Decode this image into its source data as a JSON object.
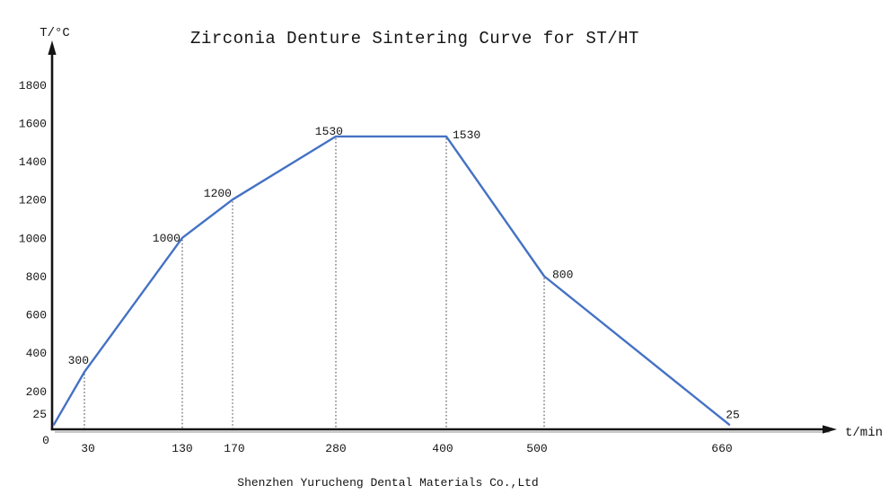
{
  "title": "Zirconia Denture Sintering Curve for ST/HT",
  "footer": "Shenzhen Yurucheng Dental Materials Co.,Ltd",
  "axes": {
    "y_axis_label": "T/°C",
    "x_axis_label": "t/min"
  },
  "colors": {
    "curve": "#4472C4",
    "axis": "#141414",
    "dropline": "#3c3c3c"
  },
  "chart_data": {
    "type": "line",
    "title": "Zirconia Denture Sintering Curve for ST/HT",
    "xlabel": "t/min",
    "ylabel": "T/°C",
    "xlim": [
      0,
      660
    ],
    "ylim": [
      0,
      1900
    ],
    "grid": "vertical droplines at labeled points only",
    "legend": "none",
    "x_ticks": [
      0,
      30,
      130,
      170,
      280,
      400,
      500,
      660
    ],
    "y_ticks": [
      25,
      200,
      400,
      600,
      800,
      1000,
      1200,
      1400,
      1600,
      1800
    ],
    "series": [
      {
        "name": "ST/HT sintering profile",
        "points": [
          {
            "t": 0,
            "temp": 25,
            "label": "",
            "dropline": false
          },
          {
            "t": 30,
            "temp": 300,
            "label": "300",
            "dropline": true
          },
          {
            "t": 130,
            "temp": 1000,
            "label": "1000",
            "dropline": true
          },
          {
            "t": 170,
            "temp": 1200,
            "label": "1200",
            "dropline": true
          },
          {
            "t": 280,
            "temp": 1530,
            "label": "1530",
            "dropline": true
          },
          {
            "t": 400,
            "temp": 1530,
            "label": "1530",
            "dropline": true
          },
          {
            "t": 500,
            "temp": 800,
            "label": "800",
            "dropline": true
          },
          {
            "t": 660,
            "temp": 25,
            "label": "25",
            "dropline": false
          }
        ]
      }
    ]
  }
}
